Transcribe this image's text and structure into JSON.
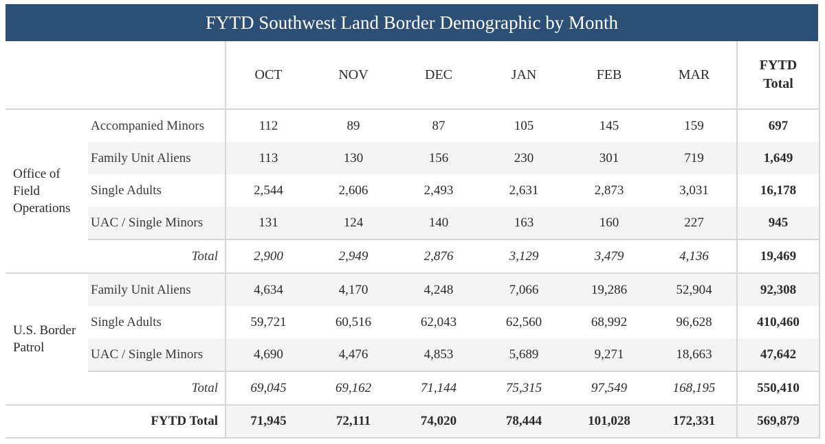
{
  "title": "FYTD Southwest Land Border Demographic by Month",
  "columns": [
    "OCT",
    "NOV",
    "DEC",
    "JAN",
    "FEB",
    "MAR"
  ],
  "total_header_line1": "FYTD",
  "total_header_line2": "Total",
  "colors": {
    "title_bg": "#2c4f76",
    "stripe": "#f4f4f4",
    "border": "#d6d6d6"
  },
  "ofo": {
    "group_label": "Office of Field Operations",
    "rows": [
      {
        "label": "Accompanied Minors",
        "values": [
          "112",
          "89",
          "87",
          "105",
          "145",
          "159"
        ],
        "total": "697"
      },
      {
        "label": "Family Unit Aliens",
        "values": [
          "113",
          "130",
          "156",
          "230",
          "301",
          "719"
        ],
        "total": "1,649"
      },
      {
        "label": "Single Adults",
        "values": [
          "2,544",
          "2,606",
          "2,493",
          "2,631",
          "2,873",
          "3,031"
        ],
        "total": "16,178"
      },
      {
        "label": "UAC / Single Minors",
        "values": [
          "131",
          "124",
          "140",
          "163",
          "160",
          "227"
        ],
        "total": "945"
      }
    ],
    "subtotal": {
      "label": "Total",
      "values": [
        "2,900",
        "2,949",
        "2,876",
        "3,129",
        "3,479",
        "4,136"
      ],
      "total": "19,469"
    }
  },
  "usbp": {
    "group_label": "U.S. Border Patrol",
    "rows": [
      {
        "label": "Family Unit Aliens",
        "values": [
          "4,634",
          "4,170",
          "4,248",
          "7,066",
          "19,286",
          "52,904"
        ],
        "total": "92,308"
      },
      {
        "label": "Single Adults",
        "values": [
          "59,721",
          "60,516",
          "62,043",
          "62,560",
          "68,992",
          "96,628"
        ],
        "total": "410,460"
      },
      {
        "label": "UAC / Single Minors",
        "values": [
          "4,690",
          "4,476",
          "4,853",
          "5,689",
          "9,271",
          "18,663"
        ],
        "total": "47,642"
      }
    ],
    "subtotal": {
      "label": "Total",
      "values": [
        "69,045",
        "69,162",
        "71,144",
        "75,315",
        "97,549",
        "168,195"
      ],
      "total": "550,410"
    }
  },
  "grand_total": {
    "label": "FYTD Total",
    "values": [
      "71,945",
      "72,111",
      "74,020",
      "78,444",
      "101,028",
      "172,331"
    ],
    "total": "569,879"
  }
}
